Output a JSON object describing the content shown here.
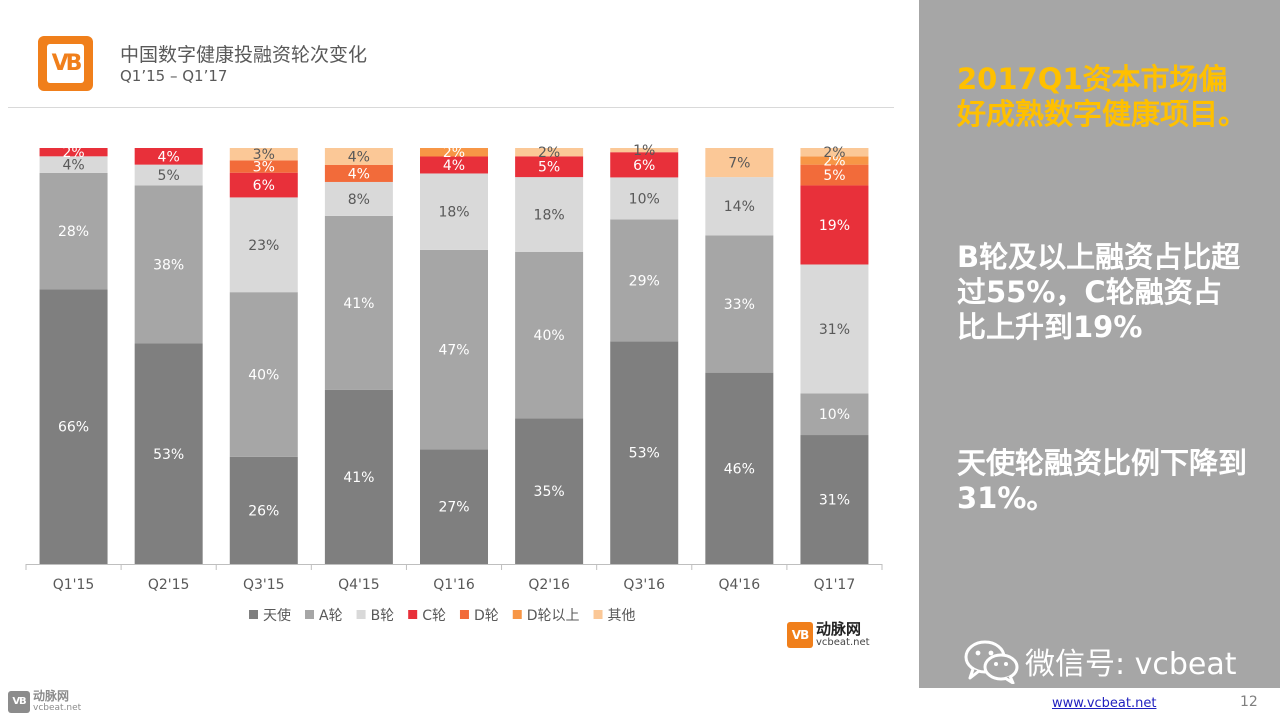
{
  "header": {
    "title": "中国数字健康投融资轮次变化",
    "subtitle": "Q1’15 – Q1’17"
  },
  "colors": {
    "brand": "#f07f1b",
    "panel": "#a6a6a6",
    "highlight": "#ffc000"
  },
  "chart_data": {
    "type": "bar",
    "stacked": true,
    "normalized_percent": true,
    "title": "中国数字健康投融资轮次变化",
    "subtitle": "Q1’15 – Q1’17",
    "xlabel": "",
    "ylabel": "",
    "ylim": [
      0,
      100
    ],
    "grid": false,
    "legend_position": "bottom",
    "categories": [
      "Q1'15",
      "Q2'15",
      "Q3'15",
      "Q4'15",
      "Q1'16",
      "Q2'16",
      "Q3'16",
      "Q4'16",
      "Q1'17"
    ],
    "series": [
      {
        "name": "天使",
        "color": "#7f7f7f",
        "values": [
          66,
          53,
          26,
          41,
          27,
          35,
          53,
          46,
          31
        ]
      },
      {
        "name": "A轮",
        "color": "#a6a6a6",
        "values": [
          28,
          38,
          40,
          41,
          47,
          40,
          29,
          33,
          10
        ]
      },
      {
        "name": "B轮",
        "color": "#d9d9d9",
        "values": [
          4,
          5,
          23,
          8,
          18,
          18,
          10,
          14,
          31
        ]
      },
      {
        "name": "C轮",
        "color": "#e8303a",
        "values": [
          2,
          4,
          6,
          0,
          4,
          5,
          6,
          0,
          19
        ]
      },
      {
        "name": "D轮",
        "color": "#f26b3a",
        "values": [
          0,
          0,
          3,
          4,
          0,
          0,
          0,
          0,
          5
        ]
      },
      {
        "name": "D轮以上",
        "color": "#f79646",
        "values": [
          0,
          0,
          0,
          0,
          2,
          0,
          0,
          0,
          2
        ]
      },
      {
        "name": "其他",
        "color": "#fbc897",
        "values": [
          0,
          0,
          3,
          4,
          0,
          2,
          1,
          7,
          2
        ]
      }
    ]
  },
  "sidebar": {
    "highlight": "2017Q1资本市场偏好成熟数字健康项目。",
    "point1": "B轮及以上融资占比超过55%，C轮融资占比上升到19%",
    "point2": "天使轮融资比例下降到31%。",
    "wechat": "微信号: vcbeat"
  },
  "brand": {
    "logo_text": "VB",
    "name": "动脉网",
    "domain": "vcbeat.net"
  },
  "footer": {
    "url": "www.vcbeat.net",
    "page": "12"
  }
}
